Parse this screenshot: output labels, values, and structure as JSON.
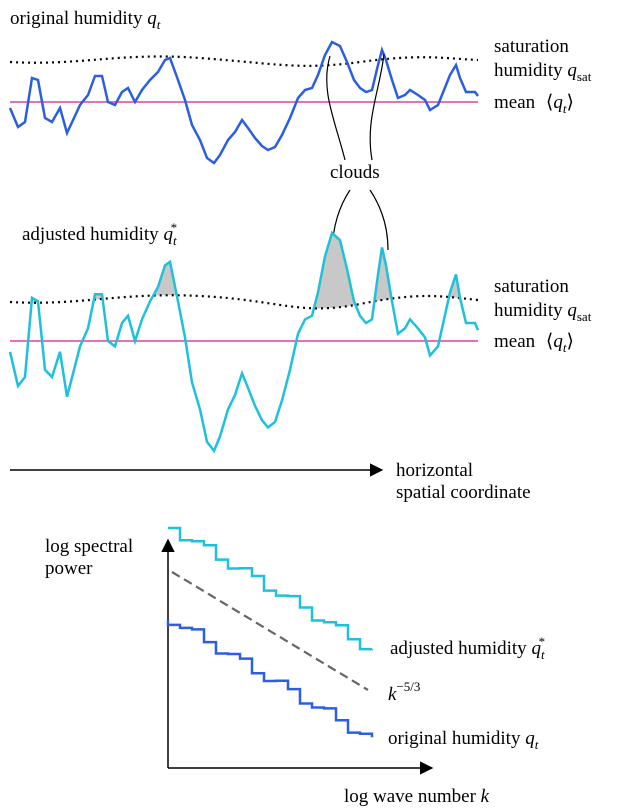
{
  "panel_top": {
    "title": {
      "text": "original humidity",
      "symbol": "q",
      "sub": "t"
    },
    "saturation": {
      "line1": "saturation",
      "line2": "humidity",
      "symbol": "q",
      "sub": "sat"
    },
    "mean": {
      "text": "mean",
      "open": "⟨",
      "symbol": "q",
      "sub": "t",
      "close": "⟩"
    }
  },
  "clouds": "clouds",
  "panel_mid": {
    "title": {
      "text": "adjusted humidity",
      "symbol": "q",
      "sub": "t",
      "sup": "*"
    },
    "saturation": {
      "line1": "saturation",
      "line2": "humidity",
      "symbol": "q",
      "sub": "sat"
    },
    "mean": {
      "text": "mean",
      "open": "⟨",
      "symbol": "q",
      "sub": "t",
      "close": "⟩"
    }
  },
  "axis_horizontal": {
    "line1": "horizontal",
    "line2": "spatial coordinate"
  },
  "spectrum": {
    "y_label": {
      "line1": "log spectral",
      "line2": "power"
    },
    "x_label": {
      "text": "log wave number",
      "symbol": "k"
    },
    "adjusted": {
      "text": "adjusted humidity",
      "symbol": "q",
      "sub": "t",
      "sup": "*"
    },
    "slope": {
      "symbol": "k",
      "exp": "−5/3"
    },
    "original": {
      "text": "original humidity",
      "symbol": "q",
      "sub": "t"
    }
  }
}
